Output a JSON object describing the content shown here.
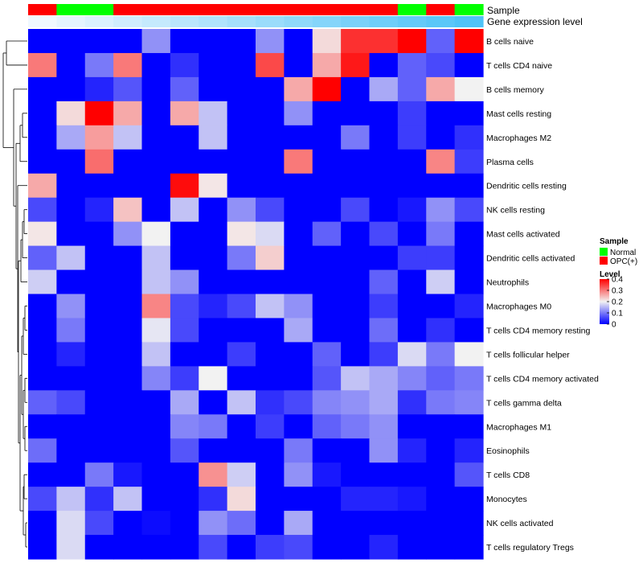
{
  "chart_data": {
    "type": "heatmap",
    "title": "",
    "annotation_titles": {
      "sample": "Sample",
      "expression": "Gene expression level"
    },
    "rows": [
      "B cells naive",
      "T cells CD4 naive",
      "B cells memory",
      "Mast cells resting",
      "Macrophages M2",
      "Plasma cells",
      "Dendritic cells resting",
      "NK cells resting",
      "Mast cells activated",
      "Dendritic cells activated",
      "Neutrophils",
      "Macrophages M0",
      "T cells CD4 memory resting",
      "T cells follicular helper",
      "T cells CD4 memory activated",
      "T cells gamma delta",
      "Macrophages M1",
      "Eosinophils",
      "T cells CD8",
      "Monocytes",
      "NK cells activated",
      "T cells regulatory  Tregs"
    ],
    "sample_groups": [
      "OPC(+)",
      "Normal",
      "Normal",
      "OPC(+)",
      "OPC(+)",
      "OPC(+)",
      "OPC(+)",
      "OPC(+)",
      "OPC(+)",
      "OPC(+)",
      "OPC(+)",
      "OPC(+)",
      "OPC(+)",
      "Normal",
      "OPC(+)",
      "Normal"
    ],
    "expression_levels": [
      0.05,
      0.1,
      0.15,
      0.2,
      0.25,
      0.3,
      0.35,
      0.4,
      0.45,
      0.5,
      0.55,
      0.6,
      0.65,
      0.7,
      0.75,
      0.8
    ],
    "values": [
      [
        0.0,
        0.0,
        0.0,
        0.0,
        0.12,
        0.0,
        0.0,
        0.0,
        0.12,
        0.0,
        0.22,
        0.36,
        0.36,
        0.4,
        0.08,
        0.4
      ],
      [
        0.3,
        0.0,
        0.1,
        0.3,
        0.0,
        0.04,
        0.0,
        0.0,
        0.34,
        0.0,
        0.26,
        0.38,
        0.0,
        0.08,
        0.06,
        0.0
      ],
      [
        0.0,
        0.0,
        0.03,
        0.07,
        0.0,
        0.08,
        0.0,
        0.0,
        0.0,
        0.26,
        0.4,
        0.0,
        0.14,
        0.08,
        0.26,
        0.2
      ],
      [
        0.0,
        0.22,
        0.4,
        0.26,
        0.0,
        0.26,
        0.16,
        0.0,
        0.0,
        0.12,
        0.0,
        0.0,
        0.0,
        0.05,
        0.0,
        0.0
      ],
      [
        0.0,
        0.14,
        0.27,
        0.16,
        0.0,
        0.0,
        0.16,
        0.0,
        0.0,
        0.0,
        0.0,
        0.1,
        0.0,
        0.05,
        0.0,
        0.04
      ],
      [
        0.0,
        0.0,
        0.31,
        0.0,
        0.0,
        0.0,
        0.0,
        0.0,
        0.0,
        0.3,
        0.0,
        0.0,
        0.0,
        0.0,
        0.29,
        0.05
      ],
      [
        0.26,
        0.0,
        0.0,
        0.0,
        0.0,
        0.39,
        0.21,
        0.0,
        0.0,
        0.0,
        0.0,
        0.0,
        0.0,
        0.0,
        0.0,
        0.0
      ],
      [
        0.06,
        0.0,
        0.03,
        0.24,
        0.0,
        0.16,
        0.0,
        0.12,
        0.06,
        0.0,
        0.0,
        0.06,
        0.0,
        0.02,
        0.12,
        0.06
      ],
      [
        0.21,
        0.0,
        0.0,
        0.12,
        0.2,
        0.0,
        0.0,
        0.21,
        0.18,
        0.0,
        0.08,
        0.0,
        0.06,
        0.0,
        0.1,
        0.0
      ],
      [
        0.08,
        0.16,
        0.0,
        0.0,
        0.16,
        0.0,
        0.0,
        0.1,
        0.23,
        0.0,
        0.0,
        0.0,
        0.0,
        0.05,
        0.05,
        0.0
      ],
      [
        0.17,
        0.0,
        0.0,
        0.0,
        0.16,
        0.12,
        0.0,
        0.0,
        0.0,
        0.0,
        0.0,
        0.0,
        0.08,
        0.0,
        0.17,
        0.0
      ],
      [
        0.0,
        0.12,
        0.0,
        0.0,
        0.29,
        0.06,
        0.03,
        0.06,
        0.16,
        0.12,
        0.0,
        0.0,
        0.05,
        0.0,
        0.0,
        0.03
      ],
      [
        0.0,
        0.1,
        0.0,
        0.0,
        0.19,
        0.06,
        0.0,
        0.0,
        0.0,
        0.14,
        0.0,
        0.0,
        0.09,
        0.0,
        0.04,
        0.0
      ],
      [
        0.0,
        0.03,
        0.0,
        0.0,
        0.16,
        0.0,
        0.0,
        0.05,
        0.0,
        0.0,
        0.08,
        0.0,
        0.05,
        0.18,
        0.1,
        0.2
      ],
      [
        0.0,
        0.0,
        0.0,
        0.0,
        0.11,
        0.05,
        0.2,
        0.0,
        0.0,
        0.0,
        0.07,
        0.16,
        0.14,
        0.11,
        0.08,
        0.1
      ],
      [
        0.08,
        0.06,
        0.0,
        0.0,
        0.0,
        0.14,
        0.0,
        0.16,
        0.04,
        0.06,
        0.11,
        0.12,
        0.14,
        0.04,
        0.1,
        0.11
      ],
      [
        0.0,
        0.0,
        0.0,
        0.0,
        0.0,
        0.11,
        0.1,
        0.0,
        0.05,
        0.0,
        0.08,
        0.1,
        0.12,
        0.0,
        0.0,
        0.0
      ],
      [
        0.09,
        0.0,
        0.0,
        0.0,
        0.0,
        0.07,
        0.0,
        0.0,
        0.0,
        0.1,
        0.0,
        0.0,
        0.12,
        0.03,
        0.0,
        0.03
      ],
      [
        0.0,
        0.0,
        0.1,
        0.02,
        0.0,
        0.0,
        0.28,
        0.17,
        0.0,
        0.12,
        0.02,
        0.0,
        0.0,
        0.0,
        0.0,
        0.07
      ],
      [
        0.06,
        0.16,
        0.04,
        0.16,
        0.0,
        0.0,
        0.04,
        0.22,
        0.0,
        0.0,
        0.0,
        0.03,
        0.03,
        0.02,
        0.0,
        0.0
      ],
      [
        0.0,
        0.18,
        0.06,
        0.0,
        0.01,
        0.0,
        0.12,
        0.09,
        0.0,
        0.14,
        0.0,
        0.0,
        0.0,
        0.0,
        0.0,
        0.0
      ],
      [
        0.0,
        0.18,
        0.0,
        0.0,
        0.0,
        0.0,
        0.06,
        0.0,
        0.05,
        0.06,
        0.0,
        0.0,
        0.03,
        0.0,
        0.0,
        0.0
      ]
    ],
    "color_scale": {
      "min": 0,
      "max": 0.4,
      "stops": [
        {
          "value": 0,
          "color": "#0000ff"
        },
        {
          "value": 0.2,
          "color": "#f2f2f2"
        },
        {
          "value": 0.4,
          "color": "#ff0000"
        }
      ]
    },
    "expression_colors": {
      "low": "#f0f8ff",
      "high": "#4fc3f7"
    },
    "legend": {
      "sample_title": "Sample",
      "sample_entries": [
        {
          "label": "Normal",
          "color": "#00ff00"
        },
        {
          "label": "OPC(+)",
          "color": "#ff0000"
        }
      ],
      "level_title": "Level",
      "level_ticks": [
        0,
        0.1,
        0.2,
        0.3,
        0.4
      ],
      "level_tick_labels": [
        "0",
        "0.1",
        "0.2",
        "0.3",
        "0.4"
      ],
      "position": "right"
    },
    "dendrogram": {
      "side": "left",
      "leaves": 22
    }
  }
}
